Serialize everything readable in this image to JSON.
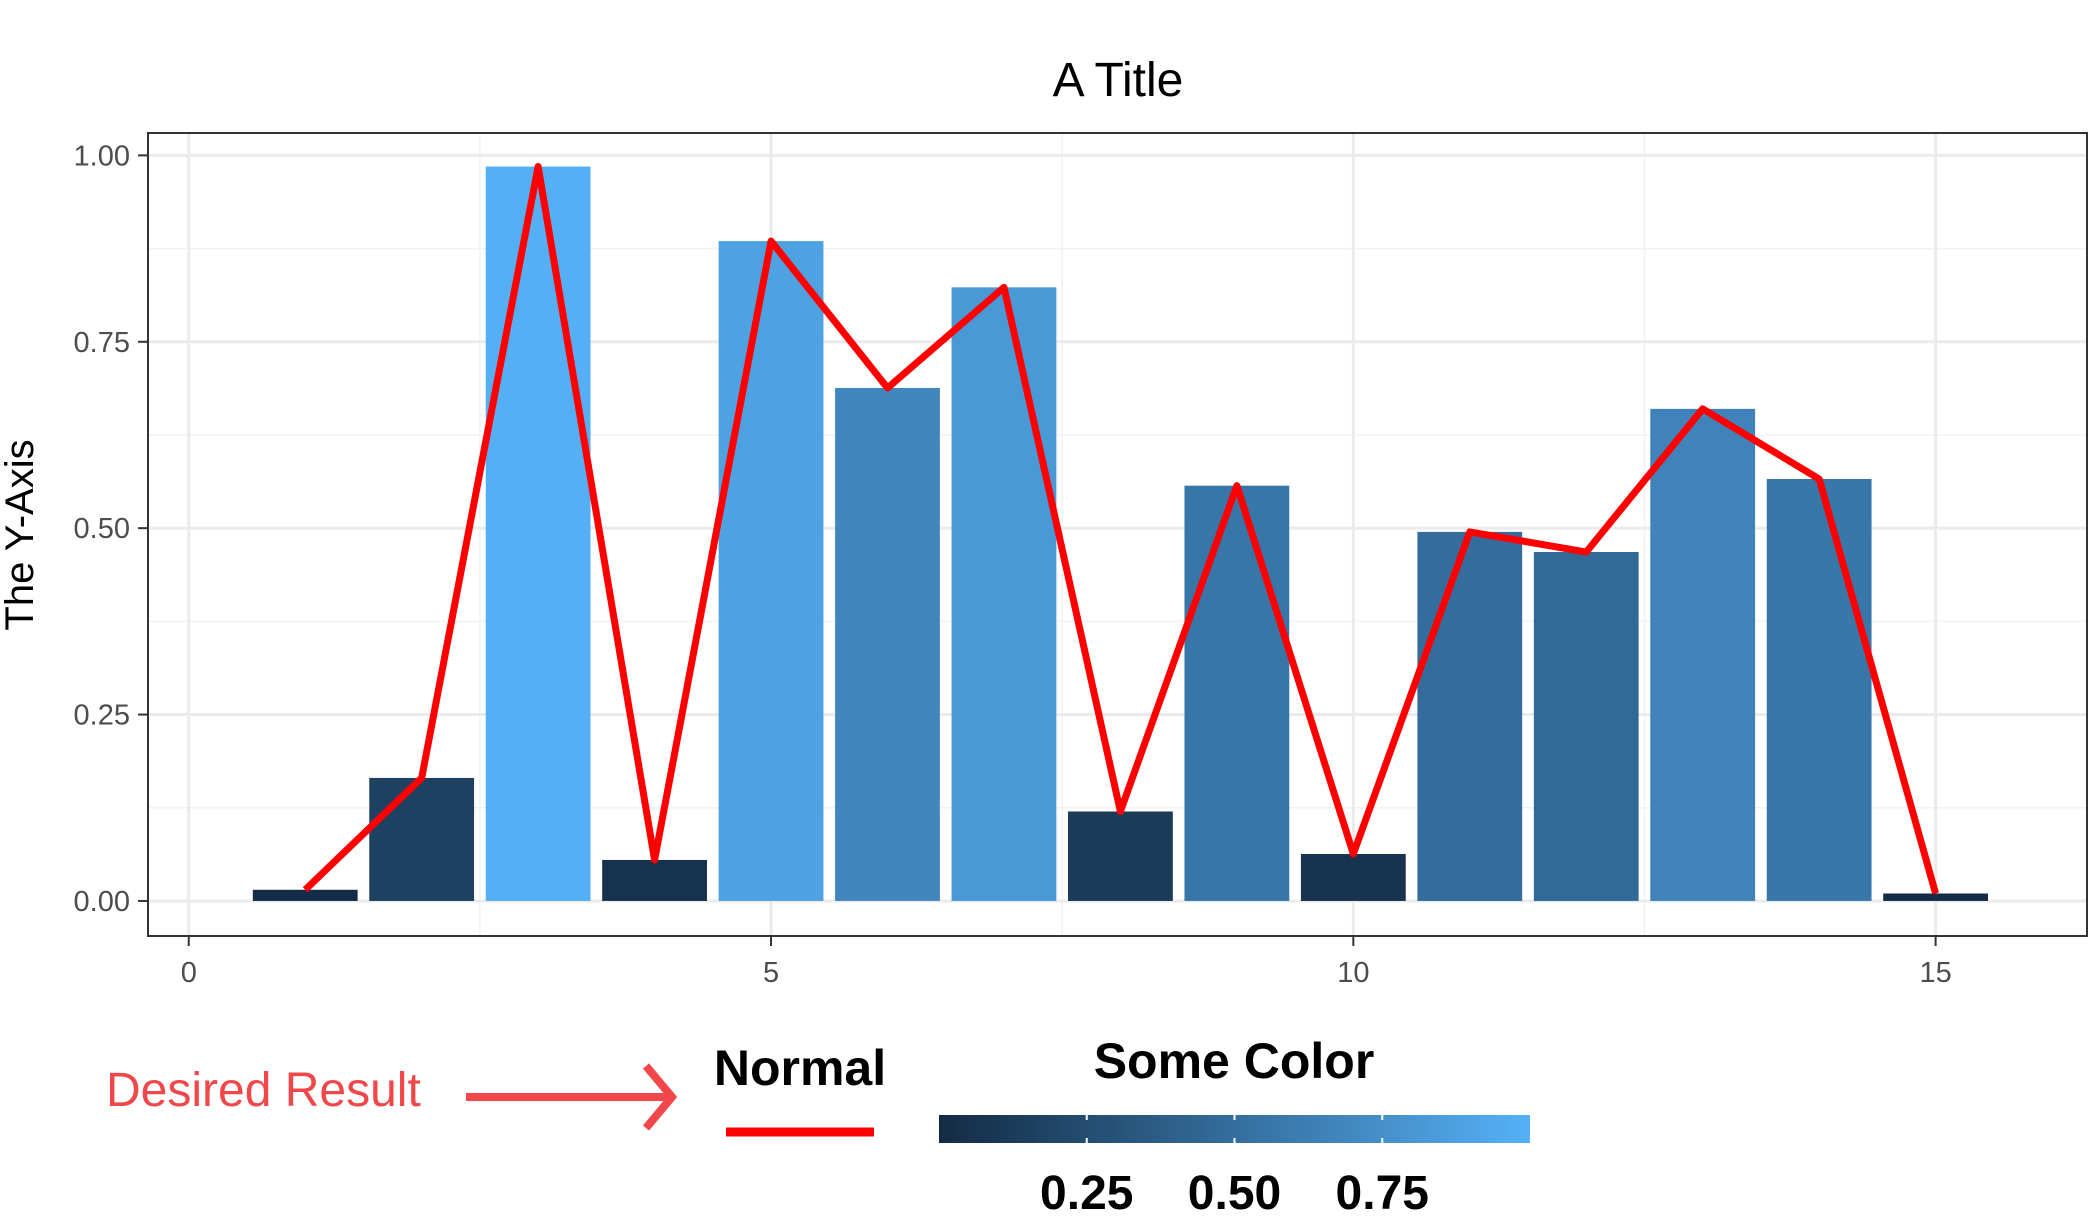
{
  "chart_data": {
    "type": "bar",
    "title": "A Title",
    "xlabel": "",
    "ylabel": "The Y-Axis",
    "x": [
      1,
      2,
      3,
      4,
      5,
      6,
      7,
      8,
      9,
      10,
      11,
      12,
      13,
      14,
      15
    ],
    "values": [
      0.015,
      0.165,
      0.985,
      0.055,
      0.885,
      0.688,
      0.823,
      0.12,
      0.557,
      0.063,
      0.495,
      0.468,
      0.66,
      0.566,
      0.01
    ],
    "line_series": {
      "name": "Normal",
      "x": [
        1,
        2,
        3,
        4,
        5,
        6,
        7,
        8,
        9,
        10,
        11,
        12,
        13,
        14,
        15
      ],
      "values": [
        0.015,
        0.165,
        0.985,
        0.055,
        0.885,
        0.688,
        0.823,
        0.12,
        0.557,
        0.063,
        0.495,
        0.468,
        0.66,
        0.566,
        0.01
      ],
      "color": "#ff0000"
    },
    "xlim": [
      -0.35,
      16.3
    ],
    "ylim": [
      -0.047,
      1.03
    ],
    "x_ticks": [
      0,
      5,
      10,
      15
    ],
    "x_tick_labels": [
      "0",
      "5",
      "10",
      "15"
    ],
    "y_ticks": [
      0,
      0.25,
      0.5,
      0.75,
      1.0
    ],
    "y_tick_labels": [
      "0.00",
      "0.25",
      "0.50",
      "0.75",
      "1.00"
    ],
    "grid": true,
    "color_scale": {
      "title": "Some Color",
      "low_color": "#132b43",
      "high_color": "#56b1f7",
      "range": [
        0,
        1
      ],
      "ticks": [
        0.25,
        0.5,
        0.75
      ],
      "tick_labels": [
        "0.25",
        "0.50",
        "0.75"
      ]
    },
    "legend_position": "bottom",
    "annotation": "Desired Result"
  }
}
